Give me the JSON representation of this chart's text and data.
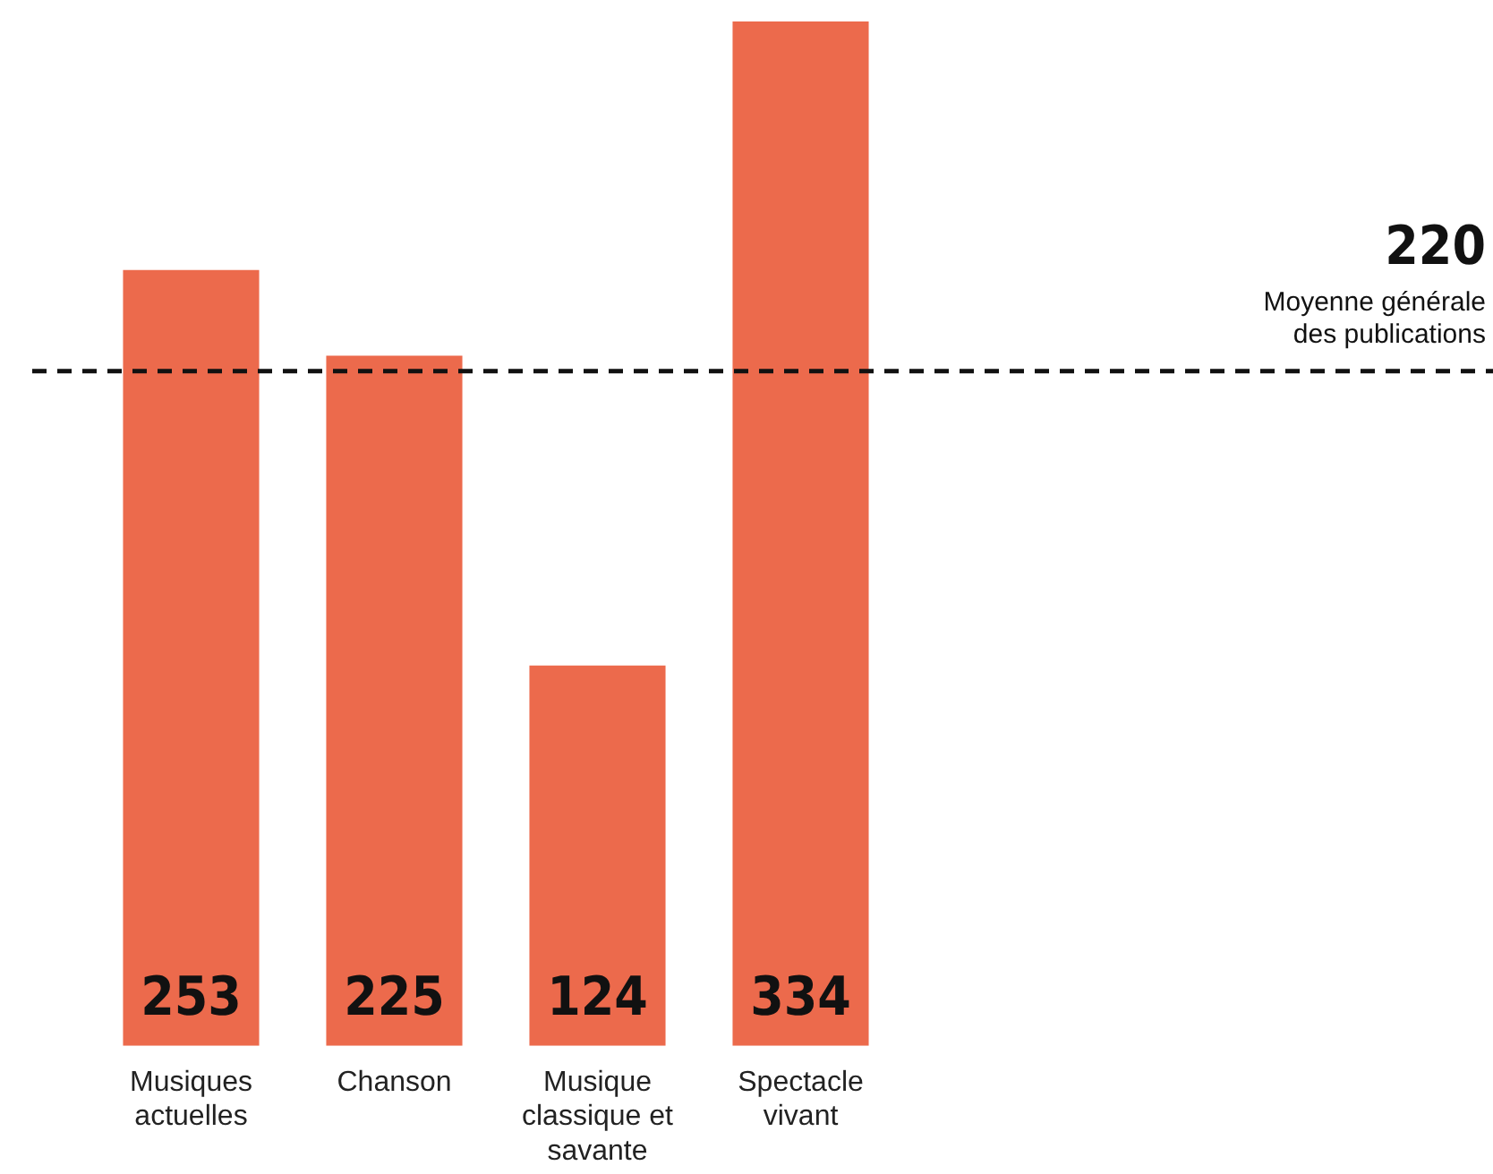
{
  "chart_data": {
    "type": "bar",
    "categories": [
      "Musiques actuelles",
      "Chanson",
      "Musique classique et savante",
      "Spectacle vivant"
    ],
    "values": [
      253,
      225,
      124,
      334
    ],
    "color": "#ec6a4c",
    "ylim": [
      0,
      334
    ],
    "data_labels": true,
    "grid": false,
    "legend": false,
    "annotations": [
      {
        "text": "220",
        "y": 220
      }
    ],
    "ref_lines": [
      {
        "axis": "y",
        "value": 220,
        "label": "Moyenne générale des publications",
        "color": "#111111",
        "line_style": "dashed"
      }
    ]
  }
}
